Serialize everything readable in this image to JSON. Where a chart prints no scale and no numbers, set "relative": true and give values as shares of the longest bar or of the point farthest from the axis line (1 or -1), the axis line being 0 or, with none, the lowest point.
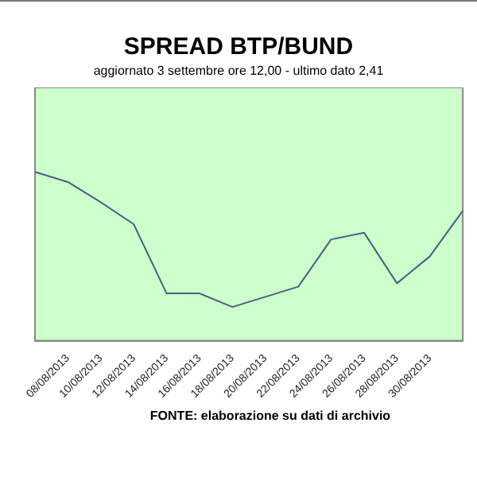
{
  "chart_data": {
    "type": "line",
    "title": "SPREAD BTP/BUND",
    "subtitle": "aggiornato 3 settembre ore 12,00 - ultimo dato 2,41",
    "annotations": [
      "FONTE: elaborazione su dati di archivio"
    ],
    "categories": [
      null,
      "08/08/2013",
      "10/08/2013",
      "12/08/2013",
      "14/08/2013",
      "16/08/2013",
      "18/08/2013",
      "20/08/2013",
      "22/08/2013",
      "24/08/2013",
      "26/08/2013",
      "28/08/2013",
      "30/08/2013",
      null
    ],
    "series": [
      {
        "color": "#4a5f80",
        "values": [
          1.0,
          0.94,
          0.82,
          0.69,
          0.28,
          0.28,
          0.2,
          0.26,
          0.32,
          0.6,
          0.64,
          0.34,
          0.5,
          0.77
        ]
      }
    ],
    "relative": true,
    "legend": false,
    "marker": "none",
    "line_style": "solid"
  }
}
